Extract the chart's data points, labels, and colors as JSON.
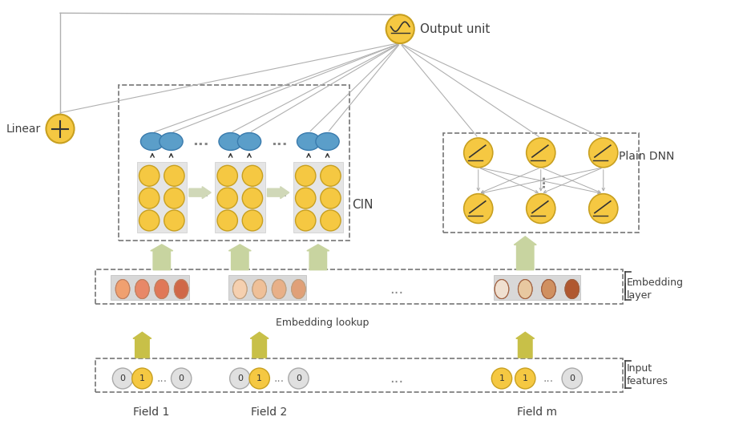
{
  "title": "",
  "bg_color": "#ffffff",
  "yellow_node_color": "#F5C842",
  "yellow_node_edge": "#C8A020",
  "blue_node_color": "#5B9EC9",
  "blue_node_edge": "#3A7BAD",
  "gray_bg": "#E8E8E8",
  "light_green_arrow": "#C8D4B0",
  "embedding_colors": [
    [
      "#F0B090",
      "#E8906A",
      "#E07A55",
      "#D06040"
    ],
    [
      "#F5C8B0",
      "#EFB090",
      "#E8A080",
      "#E09070"
    ],
    [
      "#F0E0D0",
      "#EBD0B8",
      "#E8C8A8",
      "#D08060"
    ]
  ],
  "input_node_color": "#F5C842",
  "input_node_edge": "#C8A020",
  "dnn_node_color": "#F5C842",
  "dnn_node_edge": "#C8A020",
  "output_node_color": "#F5C842",
  "output_node_edge": "#C8A020",
  "linear_node_color": "#F5C842",
  "linear_node_edge": "#C8A020",
  "arrow_color": "#B0B0B0",
  "text_color": "#404040",
  "cin_label": "CIN",
  "dnn_label": "Plain DNN",
  "linear_label": "Linear",
  "output_label": "Output unit",
  "embedding_label": "Embedding\nlayer",
  "embedding_lookup_label": "Embedding lookup",
  "input_label": "Input\nfeatures",
  "field1_label": "Field 1",
  "field2_label": "Field 2",
  "fieldm_label": "Field m"
}
